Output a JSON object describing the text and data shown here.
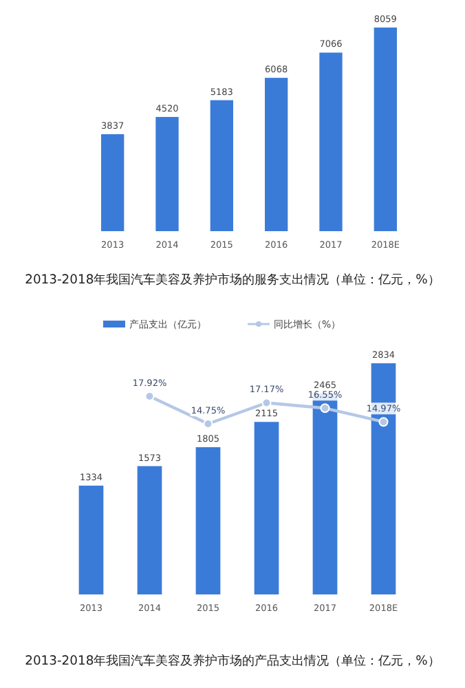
{
  "chart_data": [
    {
      "type": "bar",
      "title": "2013-2018年我国汽车美容及养护市场的服务支出情况（单位：亿元，%）",
      "categories": [
        "2013",
        "2014",
        "2015",
        "2016",
        "2017",
        "2018E"
      ],
      "values": [
        3837,
        4520,
        5183,
        6068,
        7066,
        8059
      ],
      "color": "#3b7bd8",
      "data_labels": true,
      "legend": false
    },
    {
      "type": "bar",
      "title": "2013-2018年我国汽车美容及养护市场的产品支出情况（单位：亿元，%）",
      "categories": [
        "2013",
        "2014",
        "2015",
        "2016",
        "2017",
        "2018E"
      ],
      "series": [
        {
          "name": "产品支出（亿元）",
          "color": "#3b7bd8",
          "values": [
            1334,
            1573,
            1805,
            2115,
            2465,
            2834
          ]
        },
        {
          "name": "同比增长（%）",
          "type": "line",
          "axis": "y2",
          "color": "#b4c8e6",
          "marker": "circle",
          "value_labels": [
            null,
            "17.92%",
            "14.75%",
            "17.17%",
            "16.55%",
            "14.97%"
          ],
          "values": [
            null,
            17.92,
            14.75,
            17.17,
            16.55,
            14.97
          ]
        }
      ],
      "data_labels": true,
      "legend": "top"
    }
  ]
}
